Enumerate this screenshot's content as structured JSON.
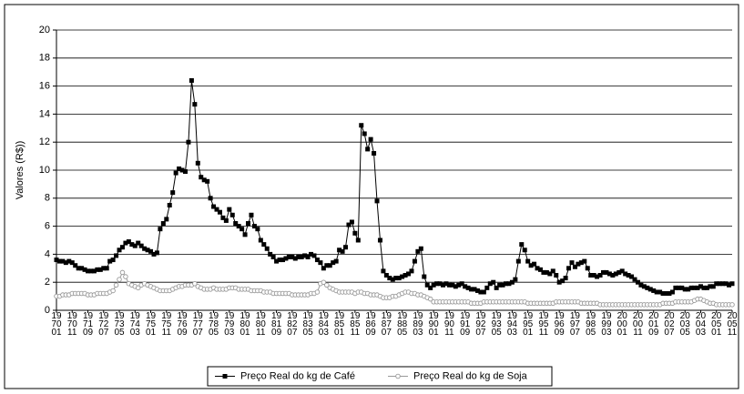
{
  "chart_data": {
    "type": "line",
    "y_label": "Valores (R$))",
    "categories": [
      "1970 01",
      null,
      null,
      null,
      null,
      "1970 11",
      null,
      null,
      null,
      null,
      "1971 09",
      null,
      null,
      null,
      null,
      "1972 07",
      null,
      null,
      null,
      null,
      "1973 05",
      null,
      null,
      null,
      null,
      "1974 03",
      null,
      null,
      null,
      null,
      "1975 01",
      null,
      null,
      null,
      null,
      "1975 11",
      null,
      null,
      null,
      null,
      "1976 09",
      null,
      null,
      null,
      null,
      "1977 07",
      null,
      null,
      null,
      null,
      "1978 05",
      null,
      null,
      null,
      null,
      "1979 03",
      null,
      null,
      null,
      null,
      "1980 01",
      null,
      null,
      null,
      null,
      "1980 11",
      null,
      null,
      null,
      null,
      "1981 09",
      null,
      null,
      null,
      null,
      "1982 07",
      null,
      null,
      null,
      null,
      "1983 05",
      null,
      null,
      null,
      null,
      "1984 03",
      null,
      null,
      null,
      null,
      "1985 01",
      null,
      null,
      null,
      null,
      "1985 11",
      null,
      null,
      null,
      null,
      "1986 09",
      null,
      null,
      null,
      null,
      "1987 07",
      null,
      null,
      null,
      null,
      "1988 05",
      null,
      null,
      null,
      null,
      "1989 03",
      null,
      null,
      null,
      null,
      "1990 01",
      null,
      null,
      null,
      null,
      "1990 11",
      null,
      null,
      null,
      null,
      "1991 09",
      null,
      null,
      null,
      null,
      "1992 07",
      null,
      null,
      null,
      null,
      "1993 05",
      null,
      null,
      null,
      null,
      "1994 03",
      null,
      null,
      null,
      null,
      "1995 01",
      null,
      null,
      null,
      null,
      "1995 11",
      null,
      null,
      null,
      null,
      "1996 09",
      null,
      null,
      null,
      null,
      "1997 07",
      null,
      null,
      null,
      null,
      "1998 05",
      null,
      null,
      null,
      null,
      "1999 03",
      null,
      null,
      null,
      null,
      "2000 01",
      null,
      null,
      null,
      null,
      "2000 11",
      null,
      null,
      null,
      null,
      "2001 09",
      null,
      null,
      null,
      null,
      "2002 07",
      null,
      null,
      null,
      null,
      "2003 05",
      null,
      null,
      null,
      null,
      "2004 03",
      null,
      null,
      null,
      null,
      "2005 01",
      null,
      null,
      null,
      null,
      "2005 11"
    ],
    "series": [
      {
        "name": "Preço Real do kg de Café",
        "color": "#000000",
        "marker": "square",
        "values": [
          3.6,
          3.5,
          3.5,
          3.4,
          3.5,
          3.4,
          3.2,
          3.0,
          3.0,
          2.9,
          2.8,
          2.8,
          2.8,
          2.9,
          2.9,
          3.0,
          3.0,
          3.5,
          3.6,
          3.9,
          4.3,
          4.5,
          4.8,
          4.9,
          4.7,
          4.6,
          4.8,
          4.6,
          4.4,
          4.3,
          4.2,
          4.0,
          4.1,
          5.8,
          6.2,
          6.5,
          7.5,
          8.4,
          9.8,
          10.1,
          10.0,
          9.9,
          12.0,
          16.4,
          14.7,
          10.5,
          9.5,
          9.3,
          9.2,
          8.0,
          7.4,
          7.2,
          7.0,
          6.6,
          6.4,
          7.2,
          6.8,
          6.2,
          6.0,
          5.8,
          5.4,
          6.2,
          6.8,
          6.0,
          5.8,
          5.0,
          4.7,
          4.4,
          4.0,
          3.8,
          3.5,
          3.6,
          3.6,
          3.7,
          3.8,
          3.8,
          3.7,
          3.8,
          3.8,
          3.9,
          3.8,
          4.0,
          3.9,
          3.6,
          3.4,
          3.0,
          3.2,
          3.2,
          3.4,
          3.5,
          4.3,
          4.2,
          4.5,
          6.1,
          6.3,
          5.5,
          5.0,
          13.2,
          12.6,
          11.5,
          12.2,
          11.2,
          7.8,
          5.0,
          2.8,
          2.5,
          2.3,
          2.2,
          2.3,
          2.3,
          2.4,
          2.5,
          2.6,
          2.8,
          3.5,
          4.2,
          4.4,
          2.4,
          1.8,
          1.6,
          1.8,
          1.9,
          1.9,
          1.8,
          1.9,
          1.8,
          1.8,
          1.7,
          1.8,
          1.9,
          1.7,
          1.6,
          1.5,
          1.5,
          1.4,
          1.3,
          1.3,
          1.6,
          1.9,
          2.0,
          1.6,
          1.8,
          1.8,
          1.9,
          1.9,
          2.0,
          2.2,
          3.5,
          4.7,
          4.3,
          3.5,
          3.2,
          3.3,
          3.0,
          2.9,
          2.7,
          2.7,
          2.6,
          2.8,
          2.5,
          2.0,
          2.1,
          2.3,
          3.0,
          3.4,
          3.1,
          3.3,
          3.4,
          3.5,
          3.0,
          2.5,
          2.5,
          2.4,
          2.5,
          2.7,
          2.7,
          2.6,
          2.5,
          2.6,
          2.7,
          2.8,
          2.6,
          2.5,
          2.4,
          2.2,
          2.0,
          1.8,
          1.7,
          1.6,
          1.5,
          1.4,
          1.3,
          1.3,
          1.2,
          1.2,
          1.2,
          1.3,
          1.6,
          1.6,
          1.6,
          1.5,
          1.5,
          1.6,
          1.6,
          1.6,
          1.7,
          1.6,
          1.6,
          1.7,
          1.7,
          1.9,
          1.9,
          1.9,
          1.9,
          1.8,
          1.9
        ]
      },
      {
        "name": "Preço Real do kg de Soja",
        "color": "#999999",
        "marker": "circle",
        "values": [
          1.0,
          1.0,
          1.1,
          1.1,
          1.1,
          1.2,
          1.2,
          1.2,
          1.2,
          1.2,
          1.1,
          1.1,
          1.1,
          1.2,
          1.2,
          1.2,
          1.2,
          1.3,
          1.4,
          1.8,
          2.2,
          2.7,
          2.4,
          1.9,
          1.8,
          1.7,
          1.6,
          1.8,
          1.9,
          1.8,
          1.7,
          1.6,
          1.5,
          1.4,
          1.4,
          1.4,
          1.4,
          1.5,
          1.6,
          1.7,
          1.7,
          1.8,
          1.8,
          1.8,
          1.9,
          1.7,
          1.6,
          1.5,
          1.5,
          1.5,
          1.6,
          1.5,
          1.5,
          1.5,
          1.5,
          1.6,
          1.6,
          1.6,
          1.5,
          1.5,
          1.5,
          1.5,
          1.4,
          1.4,
          1.4,
          1.4,
          1.3,
          1.3,
          1.3,
          1.2,
          1.2,
          1.2,
          1.2,
          1.2,
          1.2,
          1.1,
          1.1,
          1.1,
          1.1,
          1.1,
          1.1,
          1.2,
          1.2,
          1.3,
          1.9,
          2.0,
          1.8,
          1.6,
          1.5,
          1.4,
          1.3,
          1.3,
          1.3,
          1.3,
          1.3,
          1.2,
          1.3,
          1.3,
          1.2,
          1.2,
          1.1,
          1.1,
          1.1,
          1.0,
          0.9,
          0.9,
          0.9,
          1.0,
          1.0,
          1.1,
          1.2,
          1.3,
          1.3,
          1.2,
          1.2,
          1.1,
          1.1,
          1.0,
          0.9,
          0.8,
          0.6,
          0.6,
          0.6,
          0.6,
          0.6,
          0.6,
          0.6,
          0.6,
          0.6,
          0.6,
          0.6,
          0.6,
          0.5,
          0.5,
          0.5,
          0.5,
          0.6,
          0.6,
          0.6,
          0.6,
          0.6,
          0.6,
          0.6,
          0.6,
          0.6,
          0.6,
          0.6,
          0.6,
          0.6,
          0.6,
          0.5,
          0.5,
          0.5,
          0.5,
          0.5,
          0.5,
          0.5,
          0.5,
          0.5,
          0.6,
          0.6,
          0.6,
          0.6,
          0.6,
          0.6,
          0.6,
          0.6,
          0.5,
          0.5,
          0.5,
          0.5,
          0.5,
          0.5,
          0.4,
          0.4,
          0.4,
          0.4,
          0.4,
          0.4,
          0.4,
          0.4,
          0.4,
          0.4,
          0.4,
          0.4,
          0.4,
          0.4,
          0.4,
          0.4,
          0.4,
          0.4,
          0.4,
          0.4,
          0.5,
          0.5,
          0.5,
          0.5,
          0.6,
          0.6,
          0.6,
          0.6,
          0.6,
          0.6,
          0.7,
          0.8,
          0.8,
          0.7,
          0.6,
          0.5,
          0.5,
          0.4,
          0.4,
          0.4,
          0.4,
          0.4,
          0.4
        ]
      }
    ],
    "ylim": [
      0,
      20
    ],
    "yticks": [
      0,
      2,
      4,
      6,
      8,
      10,
      12,
      14,
      16,
      18,
      20
    ],
    "grid": true,
    "legend": "bottom"
  }
}
